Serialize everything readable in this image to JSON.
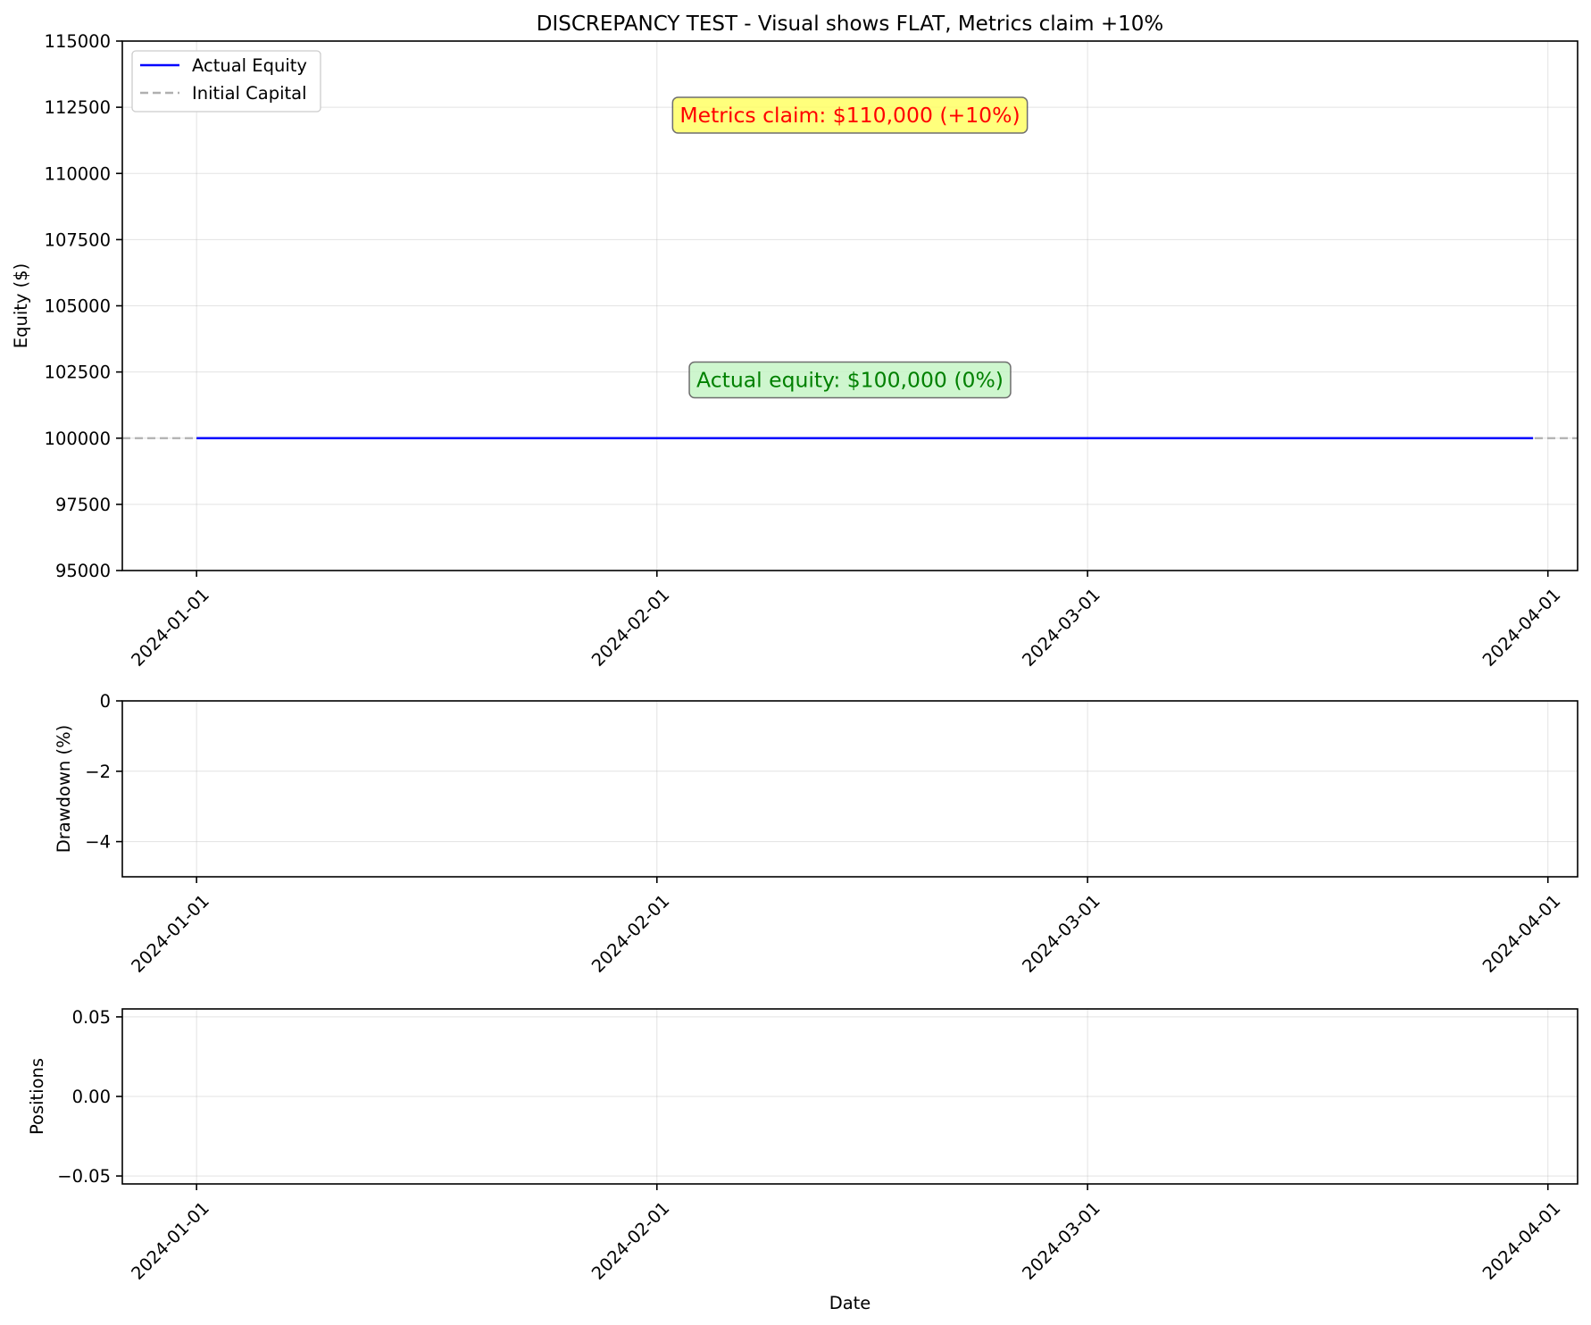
{
  "chart_data": [
    {
      "type": "line",
      "title": "DISCREPANCY TEST - Visual shows FLAT, Metrics claim +10%",
      "xlabel": "",
      "ylabel": "Equity ($)",
      "xlim": [
        "2023-12-27",
        "2024-04-03"
      ],
      "ylim": [
        95000,
        115000
      ],
      "x_ticks": [
        "2024-01-01",
        "2024-02-01",
        "2024-03-01",
        "2024-04-01"
      ],
      "y_ticks": [
        "95000",
        "97500",
        "100000",
        "102500",
        "105000",
        "107500",
        "110000",
        "112500",
        "115000"
      ],
      "grid": true,
      "legend_position": "upper-left",
      "series": [
        {
          "name": "Actual Equity",
          "color": "#0000ff",
          "style": "solid",
          "points": [
            {
              "x": "2024-01-01",
              "y": 100000
            },
            {
              "x": "2024-03-31",
              "y": 100000
            }
          ]
        }
      ],
      "reference_lines": [
        {
          "name": "Initial Capital",
          "y": 100000,
          "color": "#b0b0b0",
          "style": "dashed"
        }
      ],
      "annotations": [
        {
          "text": "Metrics claim: $110,000 (+10%)",
          "x": "2024-02-14",
          "y": 112200,
          "text_color": "#ff0000",
          "box_color": "#ffff66"
        },
        {
          "text": "Actual equity: $100,000 (0%)",
          "x": "2024-02-14",
          "y": 102200,
          "text_color": "#008000",
          "box_color": "#c6f5c6"
        }
      ]
    },
    {
      "type": "area",
      "title": "",
      "xlabel": "",
      "ylabel": "Drawdown (%)",
      "xlim": [
        "2023-12-27",
        "2024-04-03"
      ],
      "ylim": [
        -5,
        0
      ],
      "x_ticks": [
        "2024-01-01",
        "2024-02-01",
        "2024-03-01",
        "2024-04-01"
      ],
      "y_ticks": [
        "−4",
        "−2",
        "0"
      ],
      "grid": true,
      "series": []
    },
    {
      "type": "bar",
      "title": "",
      "xlabel": "Date",
      "ylabel": "Positions",
      "xlim": [
        "2023-12-27",
        "2024-04-03"
      ],
      "ylim": [
        -0.055,
        0.055
      ],
      "x_ticks": [
        "2024-01-01",
        "2024-02-01",
        "2024-03-01",
        "2024-04-01"
      ],
      "y_ticks": [
        "−0.05",
        "0.00",
        "0.05"
      ],
      "grid": true,
      "series": []
    }
  ]
}
